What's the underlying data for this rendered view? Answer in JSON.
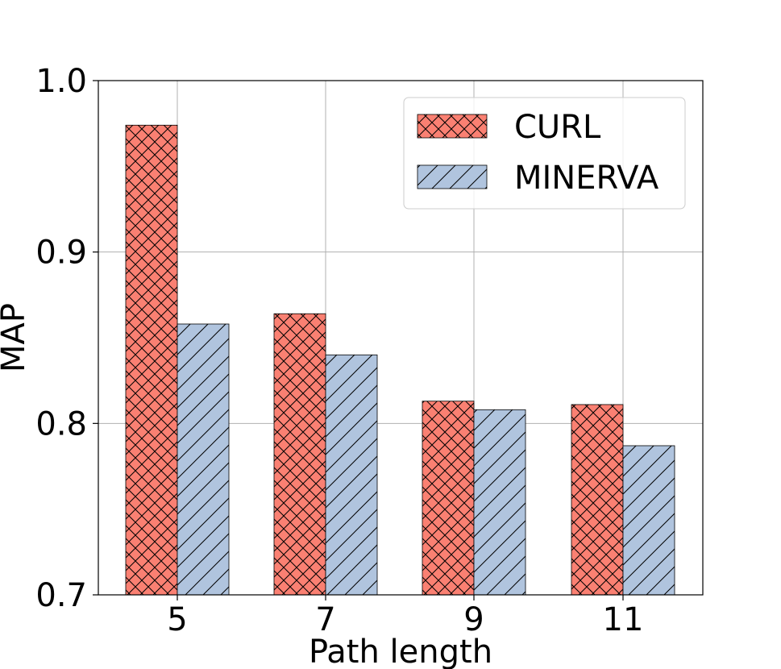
{
  "chart_data": {
    "type": "bar",
    "title": "",
    "xlabel": "Path length",
    "ylabel": "MAP",
    "categories": [
      "5",
      "7",
      "9",
      "11"
    ],
    "series": [
      {
        "name": "CURL",
        "values": [
          0.974,
          0.864,
          0.813,
          0.811
        ],
        "color": "#fa8072",
        "hatch": "crosshatch"
      },
      {
        "name": "MINERVA",
        "values": [
          0.858,
          0.84,
          0.808,
          0.787
        ],
        "color": "#b0c4de",
        "hatch": "diagonal"
      }
    ],
    "ylim": [
      0.7,
      1.0
    ],
    "yticks": [
      "0.7",
      "0.8",
      "0.9",
      "1.0"
    ],
    "grid": true,
    "legend_position": "top-right"
  }
}
